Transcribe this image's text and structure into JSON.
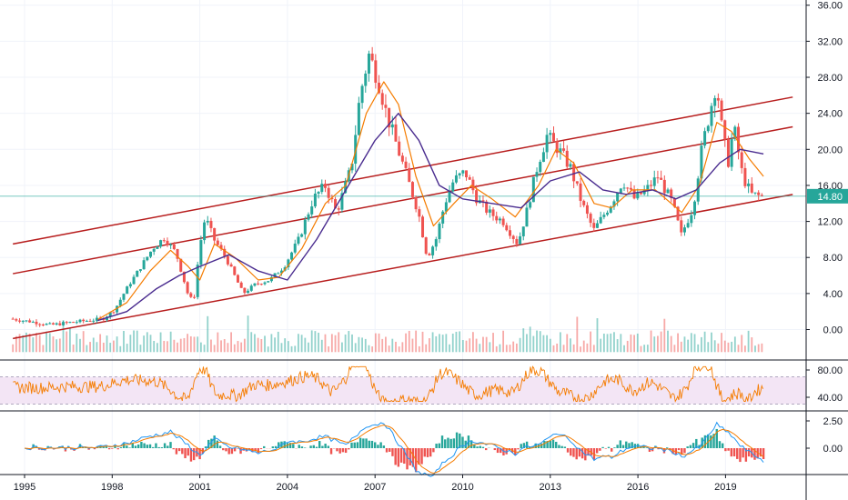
{
  "chart_data": [
    {
      "type": "candlestick",
      "panel": "price",
      "x_ticks": [
        "1995",
        "1998",
        "2001",
        "2004",
        "2007",
        "2010",
        "2013",
        "2016",
        "2019"
      ],
      "y_ticks": [
        "36.00",
        "32.00",
        "28.00",
        "24.00",
        "20.00",
        "16.00",
        "12.00",
        "8.00",
        "4.00",
        "0.00"
      ],
      "ylim": [
        -1.5,
        36
      ],
      "xlim": [
        1994.6,
        2021.3
      ],
      "last_price": "14.80",
      "last_price_value": 14.8,
      "colors": {
        "up": "#26a69a",
        "down": "#ef5350",
        "ma_fast": "#f57c00",
        "ma_slow": "#4a2c8f",
        "channel": "#b71c1c",
        "price_line": "#26a69a"
      },
      "price_path": [
        [
          1994.6,
          1.2
        ],
        [
          1995.3,
          0.9
        ],
        [
          1996.0,
          0.5
        ],
        [
          1996.7,
          0.8
        ],
        [
          1997.3,
          1.0
        ],
        [
          1997.8,
          1.2
        ],
        [
          1998.2,
          2.2
        ],
        [
          1998.6,
          4.5
        ],
        [
          1999.0,
          6.5
        ],
        [
          1999.5,
          9.0
        ],
        [
          1999.9,
          10.2
        ],
        [
          2000.3,
          8.5
        ],
        [
          2000.7,
          4.0
        ],
        [
          2000.9,
          3.0
        ],
        [
          2001.1,
          9.0
        ],
        [
          2001.3,
          12.5
        ],
        [
          2001.6,
          10.0
        ],
        [
          2002.0,
          8.0
        ],
        [
          2002.3,
          6.0
        ],
        [
          2002.6,
          4.0
        ],
        [
          2003.0,
          5.0
        ],
        [
          2003.5,
          5.5
        ],
        [
          2004.0,
          7.0
        ],
        [
          2004.5,
          10.0
        ],
        [
          2005.0,
          14.5
        ],
        [
          2005.4,
          16.0
        ],
        [
          2005.8,
          13.0
        ],
        [
          2006.3,
          18.0
        ],
        [
          2006.6,
          26.0
        ],
        [
          2006.9,
          30.5
        ],
        [
          2007.2,
          28.0
        ],
        [
          2007.5,
          24.0
        ],
        [
          2007.9,
          20.0
        ],
        [
          2008.3,
          16.0
        ],
        [
          2008.6,
          13.0
        ],
        [
          2008.9,
          8.0
        ],
        [
          2009.2,
          10.0
        ],
        [
          2009.5,
          14.0
        ],
        [
          2009.8,
          16.5
        ],
        [
          2010.2,
          17.5
        ],
        [
          2010.6,
          14.5
        ],
        [
          2011.0,
          13.0
        ],
        [
          2011.5,
          12.0
        ],
        [
          2012.0,
          9.5
        ],
        [
          2012.3,
          13.0
        ],
        [
          2012.7,
          18.5
        ],
        [
          2013.0,
          21.5
        ],
        [
          2013.4,
          20.0
        ],
        [
          2013.8,
          18.0
        ],
        [
          2014.2,
          14.0
        ],
        [
          2014.6,
          11.0
        ],
        [
          2014.9,
          12.5
        ],
        [
          2015.2,
          14.0
        ],
        [
          2015.6,
          16.5
        ],
        [
          2016.0,
          14.5
        ],
        [
          2016.4,
          15.5
        ],
        [
          2016.8,
          17.0
        ],
        [
          2017.3,
          14.0
        ],
        [
          2017.6,
          10.5
        ],
        [
          2018.0,
          13.5
        ],
        [
          2018.3,
          20.0
        ],
        [
          2018.6,
          24.5
        ],
        [
          2018.8,
          27.5
        ],
        [
          2019.0,
          22.0
        ],
        [
          2019.2,
          18.5
        ],
        [
          2019.4,
          22.5
        ],
        [
          2019.7,
          17.0
        ],
        [
          2020.0,
          15.0
        ],
        [
          2020.3,
          14.8
        ]
      ],
      "ma_fast_path": [
        [
          1997.5,
          1.1
        ],
        [
          1998.5,
          3.0
        ],
        [
          1999.3,
          6.5
        ],
        [
          2000.0,
          8.8
        ],
        [
          2000.6,
          7.0
        ],
        [
          2001.0,
          5.5
        ],
        [
          2001.5,
          9.5
        ],
        [
          2002.2,
          8.0
        ],
        [
          2003.0,
          5.5
        ],
        [
          2003.7,
          5.8
        ],
        [
          2004.5,
          9.0
        ],
        [
          2005.3,
          14.0
        ],
        [
          2006.0,
          16.0
        ],
        [
          2006.7,
          24.0
        ],
        [
          2007.3,
          27.5
        ],
        [
          2007.8,
          25.0
        ],
        [
          2008.4,
          17.0
        ],
        [
          2009.0,
          11.5
        ],
        [
          2009.7,
          14.0
        ],
        [
          2010.3,
          16.0
        ],
        [
          2011.0,
          14.5
        ],
        [
          2011.8,
          12.5
        ],
        [
          2012.6,
          16.0
        ],
        [
          2013.2,
          20.0
        ],
        [
          2013.8,
          18.5
        ],
        [
          2014.5,
          14.0
        ],
        [
          2015.1,
          13.5
        ],
        [
          2015.8,
          15.5
        ],
        [
          2016.6,
          15.5
        ],
        [
          2017.5,
          13.0
        ],
        [
          2018.1,
          16.0
        ],
        [
          2018.7,
          23.0
        ],
        [
          2019.2,
          22.0
        ],
        [
          2019.8,
          19.0
        ],
        [
          2020.3,
          17.0
        ]
      ],
      "ma_slow_path": [
        [
          1997.5,
          1.0
        ],
        [
          1998.5,
          2.0
        ],
        [
          1999.5,
          4.5
        ],
        [
          2000.3,
          6.0
        ],
        [
          2001.0,
          7.0
        ],
        [
          2002.0,
          8.3
        ],
        [
          2003.0,
          6.5
        ],
        [
          2004.0,
          5.5
        ],
        [
          2005.0,
          10.0
        ],
        [
          2006.0,
          15.5
        ],
        [
          2007.0,
          21.0
        ],
        [
          2007.8,
          24.0
        ],
        [
          2008.5,
          21.0
        ],
        [
          2009.2,
          16.0
        ],
        [
          2010.0,
          14.5
        ],
        [
          2011.0,
          14.0
        ],
        [
          2012.0,
          13.5
        ],
        [
          2013.0,
          16.5
        ],
        [
          2014.0,
          17.5
        ],
        [
          2014.8,
          15.5
        ],
        [
          2015.6,
          15.0
        ],
        [
          2016.5,
          15.5
        ],
        [
          2017.3,
          14.5
        ],
        [
          2018.0,
          15.5
        ],
        [
          2018.8,
          18.5
        ],
        [
          2019.5,
          20.0
        ],
        [
          2020.3,
          19.5
        ]
      ],
      "channel_lines": [
        [
          [
            1994.6,
            9.5
          ],
          [
            2021.3,
            25.8
          ]
        ],
        [
          [
            1994.6,
            6.2
          ],
          [
            2021.3,
            22.5
          ]
        ],
        [
          [
            1994.6,
            -1.0
          ],
          [
            2021.3,
            15.0
          ]
        ]
      ],
      "volume_baseline": -2.5
    },
    {
      "type": "line",
      "panel": "rsi",
      "y_ticks": [
        "80.00",
        "40.00"
      ],
      "ylim": [
        28,
        95
      ],
      "band": [
        30,
        70
      ],
      "colors": {
        "line": "#f57c00",
        "band": "#f3e5f5"
      }
    },
    {
      "type": "histogram",
      "panel": "macd",
      "y_ticks": [
        "2.50",
        "0.00"
      ],
      "ylim": [
        -2.2,
        2.8
      ],
      "colors": {
        "up": "#26a69a",
        "down": "#ef5350",
        "macd": "#2196f3",
        "signal": "#f57c00"
      }
    }
  ]
}
